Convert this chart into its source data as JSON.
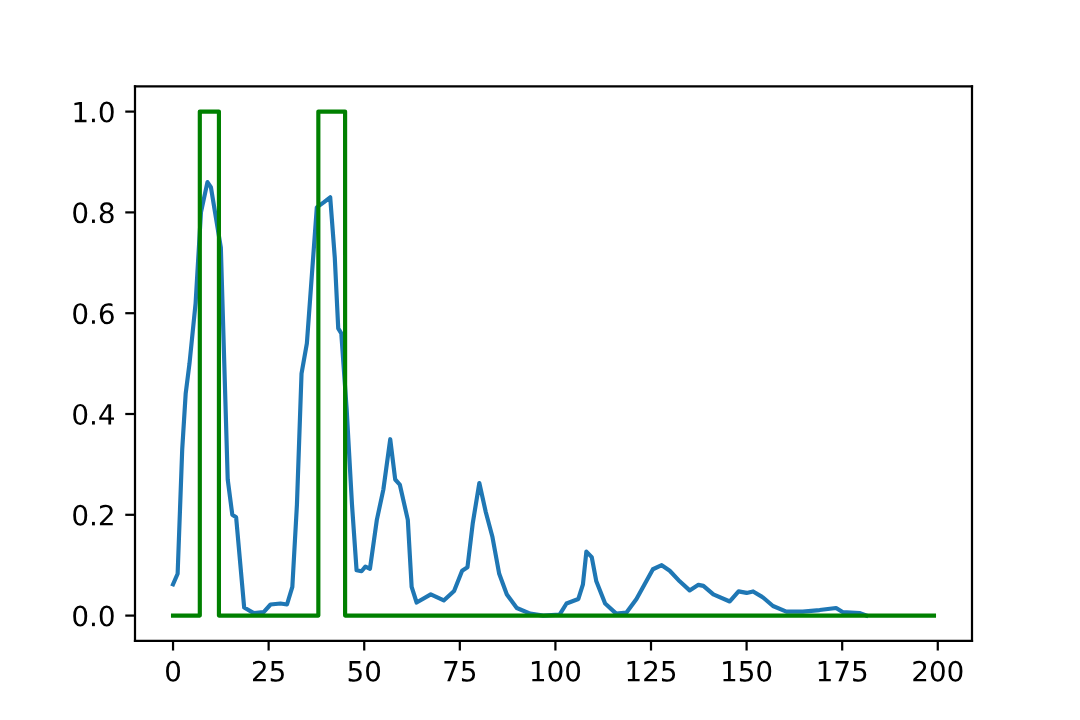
{
  "chart_data": {
    "type": "line",
    "xlim": [
      -9.95,
      208.95
    ],
    "ylim": [
      -0.05,
      1.05
    ],
    "xticks": [
      0,
      25,
      50,
      75,
      100,
      125,
      150,
      175,
      200
    ],
    "yticks": [
      {
        "value": 0,
        "label": "0.0"
      },
      {
        "value": 0.2,
        "label": "0.2"
      },
      {
        "value": 0.4,
        "label": "0.4"
      },
      {
        "value": 0.6,
        "label": "0.6"
      },
      {
        "value": 0.8,
        "label": "0.8"
      },
      {
        "value": 1.0,
        "label": "1.0"
      }
    ],
    "grid": false,
    "series": [
      {
        "color": "#1f77b4",
        "x": [
          0,
          1.2,
          2.4,
          3.3,
          4.3,
          5.9,
          7.3,
          9,
          9.9,
          12.5,
          14.3,
          15.5,
          16.5,
          18.6,
          21.1,
          23.7,
          25.5,
          28.1,
          29.8,
          31.2,
          32.4,
          33.6,
          35,
          37.6,
          39.4,
          41.1,
          42.3,
          43.2,
          44,
          45.4,
          46.8,
          48,
          49.3,
          50.3,
          51.5,
          53.3,
          55,
          56.8,
          58.1,
          59.3,
          61.4,
          62.4,
          63.7,
          67.4,
          70.8,
          73.5,
          75.6,
          77,
          78.4,
          80.1,
          81.8,
          83.5,
          85.3,
          87.3,
          89.9,
          93.4,
          96.8,
          101.1,
          102.9,
          106,
          107.2,
          108.1,
          109.5,
          110.7,
          113,
          115.9,
          118.6,
          121.2,
          125.5,
          127.8,
          129.9,
          132.5,
          135.1,
          137.4,
          138.7,
          141.3,
          145.6,
          147.9,
          150,
          151.7,
          154.3,
          156.9,
          160.4,
          164.7,
          169.1,
          173.4,
          175.1,
          179.5,
          181.3
        ],
        "values": [
          0.062,
          0.083,
          0.33,
          0.44,
          0.5,
          0.62,
          0.8,
          0.86,
          0.85,
          0.73,
          0.27,
          0.2,
          0.195,
          0.016,
          0.005,
          0.007,
          0.022,
          0.024,
          0.022,
          0.057,
          0.22,
          0.48,
          0.54,
          0.81,
          0.82,
          0.83,
          0.71,
          0.57,
          0.56,
          0.41,
          0.22,
          0.09,
          0.088,
          0.097,
          0.093,
          0.19,
          0.25,
          0.35,
          0.27,
          0.26,
          0.19,
          0.057,
          0.026,
          0.042,
          0.03,
          0.049,
          0.089,
          0.096,
          0.184,
          0.263,
          0.205,
          0.157,
          0.083,
          0.042,
          0.015,
          0.004,
          0.0,
          0.002,
          0.024,
          0.033,
          0.062,
          0.127,
          0.116,
          0.068,
          0.024,
          0.004,
          0.006,
          0.033,
          0.092,
          0.1,
          0.089,
          0.068,
          0.05,
          0.061,
          0.059,
          0.042,
          0.028,
          0.048,
          0.045,
          0.048,
          0.036,
          0.019,
          0.008,
          0.008,
          0.011,
          0.015,
          0.007,
          0.005,
          0.0
        ]
      },
      {
        "type": "step",
        "color": "#008000",
        "x": [
          0,
          7,
          12,
          38,
          45,
          199
        ],
        "values": [
          0,
          1,
          0,
          1,
          0,
          0
        ]
      }
    ]
  }
}
